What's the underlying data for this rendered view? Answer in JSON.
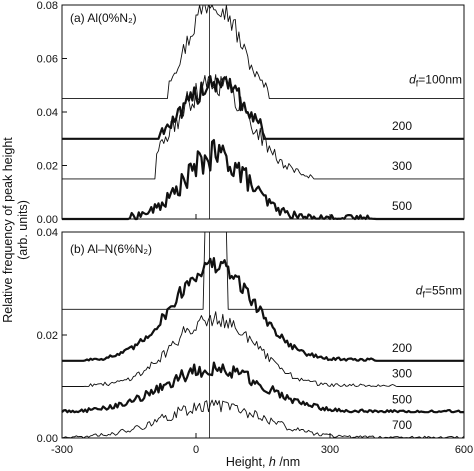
{
  "chart_data": [
    {
      "panel": "(a)",
      "panel_label": "(a)  Al(0%N₂)",
      "type": "line",
      "ylim": [
        0,
        0.08
      ],
      "y_ticks": [
        0,
        0.02,
        0.04,
        0.06,
        0.08
      ],
      "y_tick_labels": [
        "0.00",
        "0.02",
        "0.04",
        "0.06",
        "0.08"
      ],
      "xlim": [
        -300,
        600
      ],
      "vline_x": 30,
      "series_label_prefix_italic": "d",
      "series_label_prefix_sub": "f",
      "series": [
        {
          "name": "=100nm",
          "baseline": 0.045,
          "center": 40,
          "sigma": 55,
          "peak": 0.036,
          "noise": 0.006,
          "extent": [
            -60,
            160
          ],
          "stroke": 0.9,
          "label_full": "d_f=100nm"
        },
        {
          "name": "200",
          "baseline": 0.03,
          "center": 45,
          "sigma": 60,
          "peak": 0.02,
          "noise": 0.006,
          "extent": [
            -80,
            150
          ],
          "stroke": 2.2
        },
        {
          "name": "300",
          "baseline": 0.015,
          "center": 40,
          "sigma": 80,
          "peak": 0.035,
          "noise": 0.006,
          "extent": [
            -90,
            260
          ],
          "stroke": 0.9
        },
        {
          "name": "500",
          "baseline": 0.0,
          "center": 45,
          "sigma": 70,
          "peak": 0.022,
          "noise": 0.006,
          "extent": [
            -150,
            400
          ],
          "stroke": 2.2
        }
      ]
    },
    {
      "panel": "(b)",
      "panel_label": "(b)  Al–N(6%N₂)",
      "type": "line",
      "ylim": [
        0,
        0.04
      ],
      "y_ticks": [
        0,
        0.02,
        0.04
      ],
      "y_tick_labels": [
        "0.00",
        "0.02",
        "0.04"
      ],
      "xlim": [
        -300,
        600
      ],
      "vline_x": 30,
      "x_ticks": [
        -300,
        0,
        300,
        600
      ],
      "x_tick_labels": [
        "-300",
        "0",
        "300",
        "600"
      ],
      "series_label_prefix_italic": "d",
      "series_label_prefix_sub": "f",
      "series": [
        {
          "name": "=55nm",
          "baseline": 0.025,
          "center": 40,
          "sigma": 30,
          "peak": 0.03,
          "noise": 0.0004,
          "extent": [
            20,
            70
          ],
          "stroke": 0.9
        },
        {
          "name": "200",
          "baseline": 0.015,
          "center": 40,
          "sigma": 90,
          "peak": 0.018,
          "noise": 0.0018,
          "extent": [
            -250,
            400
          ],
          "stroke": 2.2
        },
        {
          "name": "300",
          "baseline": 0.01,
          "center": 40,
          "sigma": 90,
          "peak": 0.013,
          "noise": 0.0018,
          "extent": [
            -250,
            450
          ],
          "stroke": 0.9
        },
        {
          "name": "500",
          "baseline": 0.005,
          "center": 40,
          "sigma": 110,
          "peak": 0.008,
          "noise": 0.0016,
          "extent": [
            -300,
            600
          ],
          "stroke": 2.2
        },
        {
          "name": "700",
          "baseline": 0.0,
          "center": 40,
          "sigma": 110,
          "peak": 0.006,
          "noise": 0.0014,
          "extent": [
            -300,
            600
          ],
          "stroke": 0.9
        }
      ]
    }
  ],
  "axes": {
    "ylabel_line1": "Relative frequency of peak height",
    "ylabel_line2": "(arb. units)",
    "xlabel_pre": "Height, ",
    "xlabel_var": "h",
    "xlabel_post": " /nm"
  }
}
